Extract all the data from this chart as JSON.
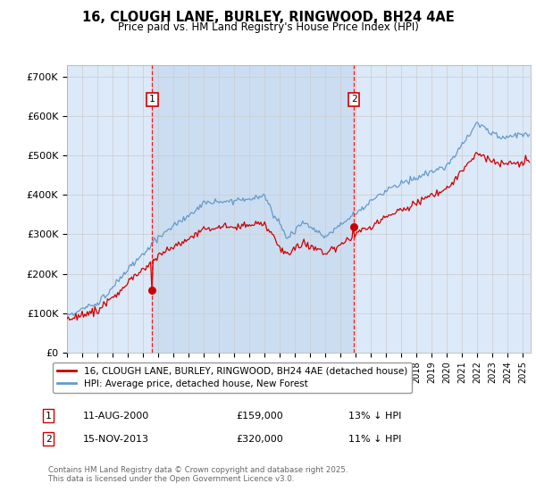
{
  "title_line1": "16, CLOUGH LANE, BURLEY, RINGWOOD, BH24 4AE",
  "title_line2": "Price paid vs. HM Land Registry's House Price Index (HPI)",
  "ylabel_ticks": [
    "£0",
    "£100K",
    "£200K",
    "£300K",
    "£400K",
    "£500K",
    "£600K",
    "£700K"
  ],
  "ytick_values": [
    0,
    100000,
    200000,
    300000,
    400000,
    500000,
    600000,
    700000
  ],
  "ylim": [
    0,
    730000
  ],
  "xlim_start": 1995.0,
  "xlim_end": 2025.5,
  "red_line_label": "16, CLOUGH LANE, BURLEY, RINGWOOD, BH24 4AE (detached house)",
  "blue_line_label": "HPI: Average price, detached house, New Forest",
  "marker1_date": 2000.61,
  "marker1_value": 159000,
  "marker1_text": "11-AUG-2000",
  "marker1_price": "£159,000",
  "marker1_hpi": "13% ↓ HPI",
  "marker2_date": 2013.88,
  "marker2_value": 320000,
  "marker2_text": "15-NOV-2013",
  "marker2_price": "£320,000",
  "marker2_hpi": "11% ↓ HPI",
  "footer": "Contains HM Land Registry data © Crown copyright and database right 2025.\nThis data is licensed under the Open Government Licence v3.0.",
  "bg_color": "#dce9f8",
  "highlight_bg": "#c8dcf0",
  "plot_bg": "#ffffff",
  "red_color": "#cc0000",
  "blue_color": "#6699cc"
}
